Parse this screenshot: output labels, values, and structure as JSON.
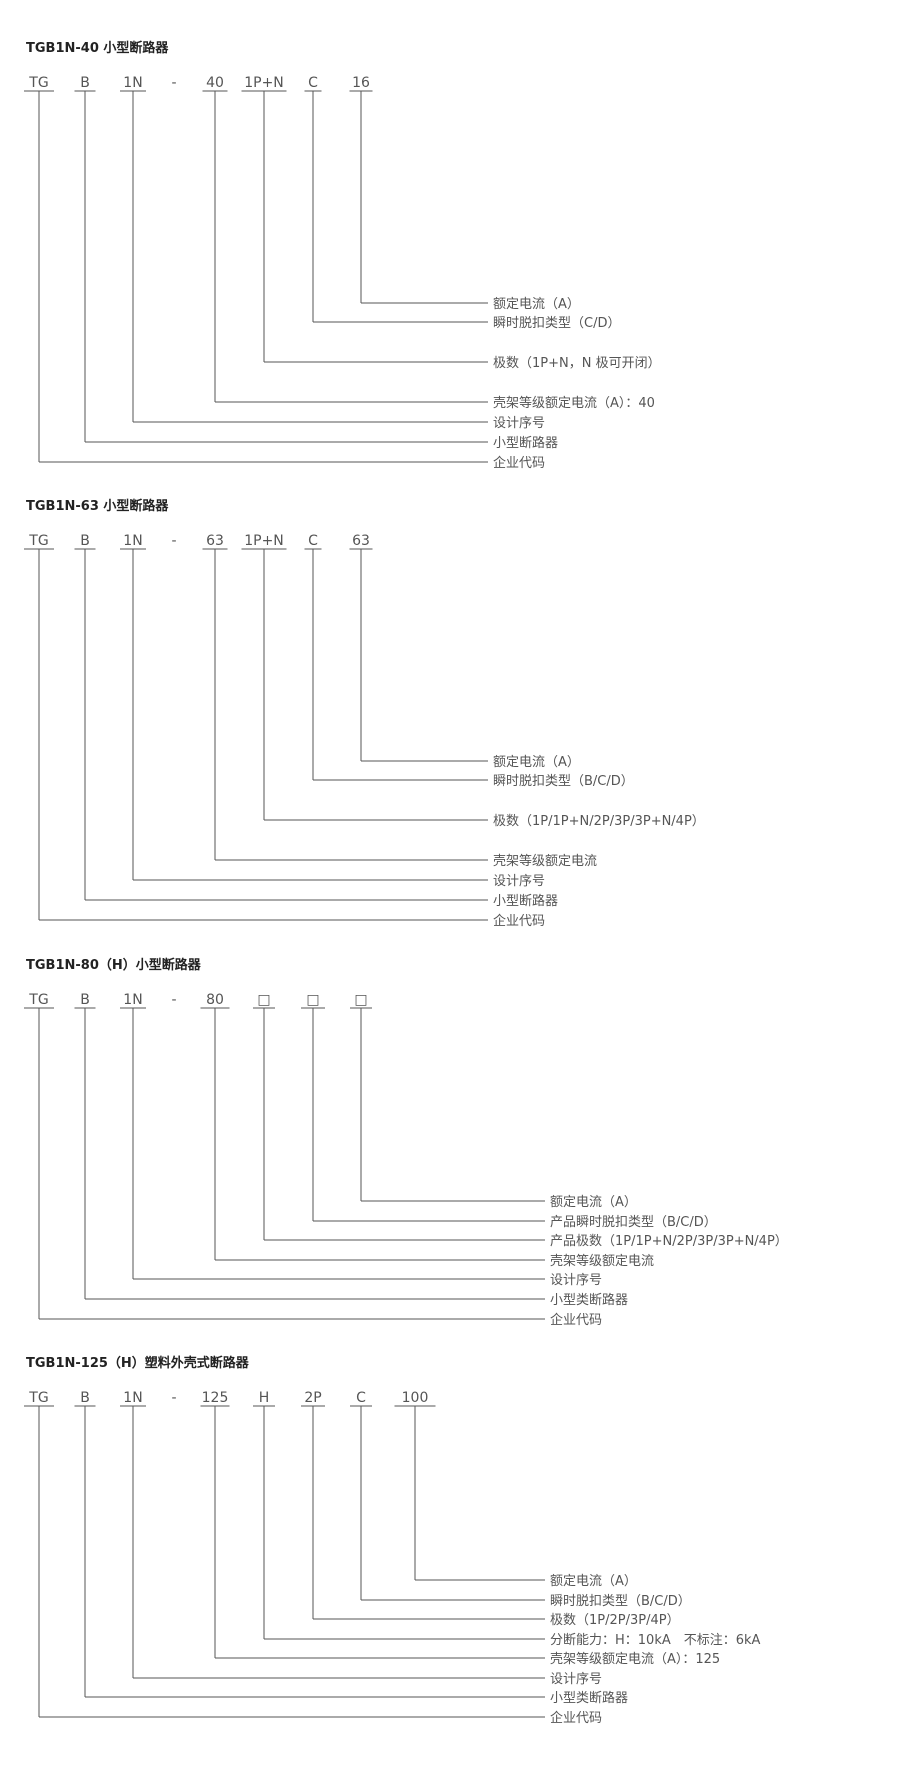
{
  "sections": [
    {
      "title": "TGB1N-40 小型断路器",
      "codes": [
        "TG",
        "B",
        "1N",
        "-",
        "40",
        "1P+N",
        "C",
        "16"
      ],
      "labels": [
        {
          "text": "额定电流（A）",
          "code": 7
        },
        {
          "text": "瞬时脱扣类型（C/D）",
          "code": 6
        },
        {
          "text": "极数（1P+N，N 极可开闭）",
          "code": 5
        },
        {
          "text": "壳架等级额定电流（A）：40",
          "code": 4
        },
        {
          "text": "设计序号",
          "code": 2
        },
        {
          "text": "小型断路器",
          "code": 1
        },
        {
          "text": "企业代码",
          "code": 0
        }
      ]
    },
    {
      "title": "TGB1N-63 小型断路器",
      "codes": [
        "TG",
        "B",
        "1N",
        "-",
        "63",
        "1P+N",
        "C",
        "63"
      ],
      "labels": [
        {
          "text": "额定电流（A）",
          "code": 7
        },
        {
          "text": "瞬时脱扣类型（B/C/D）",
          "code": 6
        },
        {
          "text": "极数（1P/1P+N/2P/3P/3P+N/4P）",
          "code": 5
        },
        {
          "text": "壳架等级额定电流",
          "code": 4
        },
        {
          "text": "设计序号",
          "code": 2
        },
        {
          "text": "小型断路器",
          "code": 1
        },
        {
          "text": "企业代码",
          "code": 0
        }
      ]
    },
    {
      "title": "TGB1N-80（H）小型断路器",
      "codes": [
        "TG",
        "B",
        "1N",
        "-",
        "80",
        "□",
        "□",
        "□"
      ],
      "labels": [
        {
          "text": "额定电流（A）",
          "code": 7
        },
        {
          "text": "产品瞬时脱扣类型（B/C/D）",
          "code": 6
        },
        {
          "text": "产品极数（1P/1P+N/2P/3P/3P+N/4P）",
          "code": 5
        },
        {
          "text": "壳架等级额定电流",
          "code": 4
        },
        {
          "text": "设计序号",
          "code": 2
        },
        {
          "text": "小型类断路器",
          "code": 1
        },
        {
          "text": "企业代码",
          "code": 0
        }
      ]
    },
    {
      "title": "TGB1N-125（H）塑料外壳式断路器",
      "codes": [
        "TG",
        "B",
        "1N",
        "-",
        "125",
        "H",
        "2P",
        "C",
        "100"
      ],
      "labels": [
        {
          "text": "额定电流（A）",
          "code": 8
        },
        {
          "text": "瞬时脱扣类型（B/C/D）",
          "code": 7
        },
        {
          "text": "极数（1P/2P/3P/4P）",
          "code": 6
        },
        {
          "text": "分断能力：H：10kA　不标注：6kA",
          "code": 5
        },
        {
          "text": "壳架等级额定电流（A）：125",
          "code": 4
        },
        {
          "text": "设计序号",
          "code": 2
        },
        {
          "text": "小型类断路器",
          "code": 1
        },
        {
          "text": "企业代码",
          "code": 0
        }
      ]
    }
  ]
}
